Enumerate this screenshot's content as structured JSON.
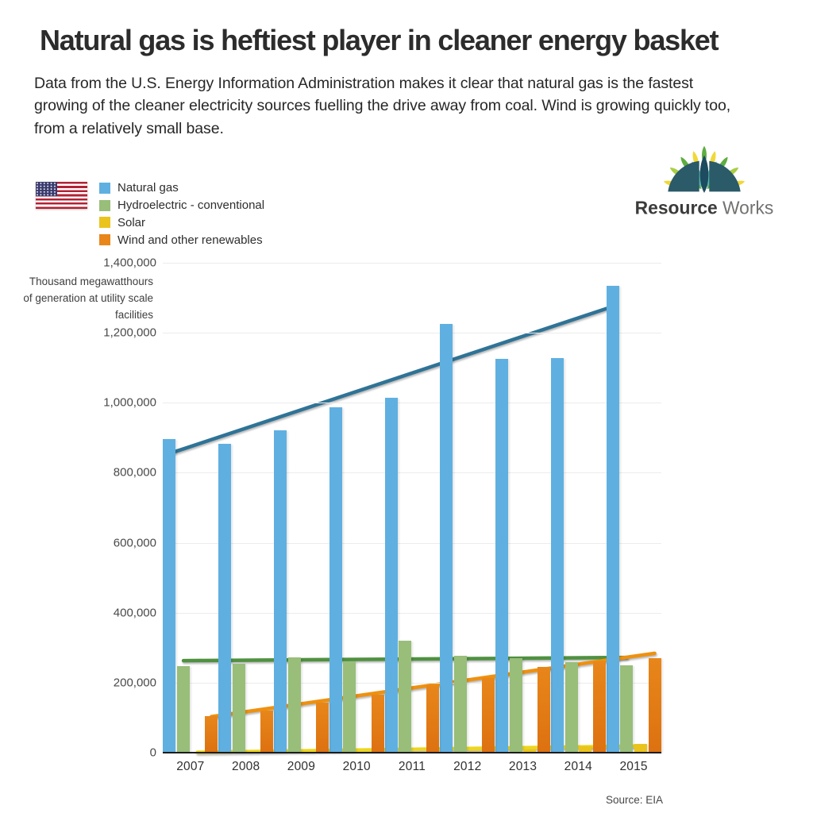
{
  "header": {
    "title": "Natural gas is heftiest player in cleaner energy basket",
    "subtitle": "Data from the U.S. Energy Information Administration makes it clear that natural gas is the fastest\ngrowing of the cleaner electricity sources fuelling the drive away from coal. Wind is growing quickly too,\nfrom a relatively small base."
  },
  "branding": {
    "flag_icon": "us-flag-icon",
    "logo_text_bold": "Resource",
    "logo_text_light": " Works"
  },
  "axis": {
    "y_unit_label": "Thousand megawatthours\nof generation at utility scale\nfacilities",
    "y_ticks": [
      "0",
      "200,000",
      "400,000",
      "600,000",
      "800,000",
      "1,000,000",
      "1,200,000",
      "1,400,000"
    ]
  },
  "footer": {
    "source": "Source: EIA"
  },
  "chart_data": {
    "type": "bar",
    "title": "Natural gas is heftiest player in cleaner energy basket",
    "categories": [
      "2007",
      "2008",
      "2009",
      "2010",
      "2011",
      "2012",
      "2013",
      "2014",
      "2015"
    ],
    "series": [
      {
        "name": "Natural gas",
        "color": "#5FB0E1",
        "trend_color": "#2F7396",
        "values": [
          897000,
          883000,
          921000,
          988000,
          1014000,
          1226000,
          1125000,
          1127000,
          1335000
        ],
        "trend": [
          855000,
          1275000
        ]
      },
      {
        "name": "Hydroelectric - conventional",
        "color": "#98BE79",
        "trend_color": "#4F9140",
        "values": [
          248000,
          255000,
          273000,
          260000,
          319000,
          276000,
          269000,
          259000,
          249000
        ],
        "trend": [
          263000,
          272000
        ]
      },
      {
        "name": "Solar",
        "color": "#EAC41C",
        "trend_color": "#EDD71D",
        "values": [
          600,
          900,
          900,
          1200,
          1800,
          4300,
          9000,
          17700,
          25000
        ],
        "trend": [
          1000,
          19000
        ]
      },
      {
        "name": "Wind and other renewables",
        "color": "#E8861A",
        "color2": "#DD7110",
        "trend_color": "#EE9110",
        "values": [
          105000,
          120000,
          143000,
          166000,
          193000,
          214000,
          244000,
          261000,
          270000
        ],
        "trend": [
          103000,
          284000
        ]
      }
    ],
    "ylabel": "Thousand megawatthours of generation at utility scale facilities",
    "xlabel": "",
    "ylim": [
      0,
      1400000
    ],
    "ytick_step": 200000,
    "grid": true,
    "legend_position": "top-left",
    "source": "Source: EIA"
  }
}
